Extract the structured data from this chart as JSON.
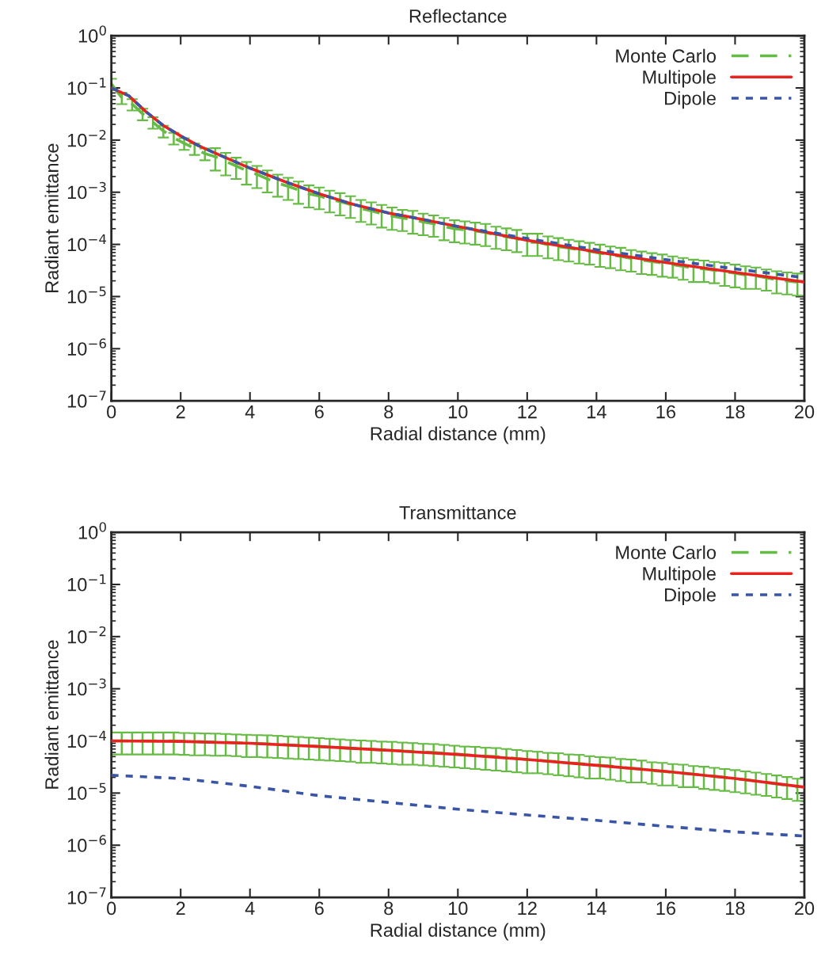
{
  "chart_data": [
    {
      "type": "line",
      "title": "Reflectance",
      "xlabel": "Radial distance (mm)",
      "ylabel": "Radiant emittance",
      "log": "y",
      "legend": "top right",
      "grid": false,
      "xlim": [
        0,
        20
      ],
      "xticks": [
        0,
        2,
        4,
        6,
        8,
        10,
        12,
        14,
        16,
        18,
        20
      ],
      "ylim": [
        1e-07,
        1
      ],
      "yticks": [
        {
          "value": 1e-07,
          "label": "10$^{−7}$"
        },
        {
          "value": 1e-06,
          "label": "10$^{−6}$"
        },
        {
          "value": 1e-05,
          "label": "10$^{−5}$"
        },
        {
          "value": 0.0001,
          "label": "10$^{−4}$"
        },
        {
          "value": 0.001,
          "label": "10$^{−3}$"
        },
        {
          "value": 0.01,
          "label": "10$^{−2}$"
        },
        {
          "value": 0.1,
          "label": "10$^{−1}$"
        },
        {
          "value": 1,
          "label": "10$^{0}$"
        }
      ],
      "series": [
        {
          "name": "Monte Carlo",
          "color": "#66bb44",
          "line_style": "dashed",
          "x": [
            0,
            0.3,
            0.6,
            0.9,
            1.2,
            1.5,
            1.8,
            2.1,
            2.4,
            2.7,
            3.0,
            3.3,
            3.6,
            3.9,
            4.2,
            4.5,
            4.8,
            5.1,
            5.4,
            5.7,
            6.0,
            6.3,
            6.6,
            6.9,
            7.2,
            7.5,
            7.8,
            8.1,
            8.4,
            8.7,
            9.0,
            9.3,
            9.6,
            9.9,
            10.2,
            10.5,
            10.8,
            11.1,
            11.4,
            11.7,
            12.0,
            12.3,
            12.6,
            12.9,
            13.2,
            13.5,
            13.8,
            14.1,
            14.4,
            14.7,
            15.0,
            15.3,
            15.6,
            15.9,
            16.2,
            16.5,
            16.8,
            17.1,
            17.4,
            17.7,
            18.0,
            18.3,
            18.6,
            18.9,
            19.2,
            19.5,
            19.8
          ],
          "values": [
            0.12,
            0.065,
            0.049,
            0.032,
            0.022,
            0.015,
            0.011,
            0.0087,
            0.0069,
            0.0055,
            0.0048,
            0.0039,
            0.0032,
            0.0026,
            0.0022,
            0.0018,
            0.0015,
            0.0013,
            0.0011,
            0.00093,
            0.00085,
            0.00074,
            0.00066,
            0.00058,
            0.00049,
            0.00044,
            0.00039,
            0.00035,
            0.00032,
            0.0003,
            0.00027,
            0.00025,
            0.00022,
            0.0002,
            0.00019,
            0.00018,
            0.00017,
            0.00015,
            0.00014,
            0.00013,
            0.00011,
            0.00011,
            9.8e-05,
            9.1e-05,
            8.5e-05,
            7.9e-05,
            7.4e-05,
            6.8e-05,
            6.3e-05,
            5.9e-05,
            5.4e-05,
            5e-05,
            4.7e-05,
            4.4e-05,
            4.1e-05,
            3.8e-05,
            3.5e-05,
            3.4e-05,
            3.2e-05,
            3e-05,
            2.8e-05,
            2.6e-05,
            2.5e-05,
            2.3e-05,
            2.1e-05,
            2e-05,
            1.9e-05
          ],
          "errors": [
            0.03,
            0.016,
            0.012,
            0.008,
            0.0055,
            0.0038,
            0.0028,
            0.0022,
            0.0017,
            0.0014,
            0.0022,
            0.0018,
            0.0014,
            0.0012,
            0.001,
            0.00081,
            0.00068,
            0.00059,
            0.0005,
            0.00042,
            0.00038,
            0.00033,
            0.0003,
            0.00026,
            0.00022,
            0.0002,
            0.00018,
            0.00016,
            0.00014,
            0.00014,
            0.00012,
            0.00011,
            0.0001,
            9e-05,
            8.6e-05,
            8.1e-05,
            7.7e-05,
            6.8e-05,
            6.3e-05,
            5.9e-05,
            5e-05,
            5e-05,
            4.4e-05,
            4.1e-05,
            3.8e-05,
            3.6e-05,
            3.3e-05,
            3.1e-05,
            2.8e-05,
            2.7e-05,
            2.4e-05,
            2.3e-05,
            2.1e-05,
            2e-05,
            1.8e-05,
            1.7e-05,
            1.6e-05,
            1.5e-05,
            1.4e-05,
            1.4e-05,
            1.3e-05,
            1.2e-05,
            1.1e-05,
            1e-05,
            9.5e-06,
            9e-06,
            8.6e-06
          ]
        },
        {
          "name": "Multipole",
          "color": "#e8231f",
          "line_style": "solid",
          "x": [
            0,
            0.5,
            1,
            1.5,
            2,
            2.5,
            3,
            4,
            5,
            6,
            7,
            8,
            9,
            10,
            12,
            14,
            16,
            18,
            20
          ],
          "values": [
            0.1,
            0.071,
            0.035,
            0.019,
            0.012,
            0.0079,
            0.0056,
            0.0029,
            0.0016,
            0.00093,
            0.00058,
            0.0004,
            0.0003,
            0.00022,
            0.00012,
            7.2e-05,
            4.5e-05,
            2.9e-05,
            1.9e-05
          ]
        },
        {
          "name": "Dipole",
          "color": "#3a55a5",
          "line_style": "dotted",
          "x": [
            0,
            0.5,
            1,
            1.5,
            2,
            2.5,
            3,
            4,
            5,
            6,
            7,
            8,
            9,
            10,
            12,
            14,
            16,
            18,
            20
          ],
          "values": [
            0.1,
            0.071,
            0.035,
            0.019,
            0.012,
            0.0079,
            0.0056,
            0.0029,
            0.0016,
            0.00093,
            0.00058,
            0.0004,
            0.0003,
            0.00022,
            0.00013,
            7.9e-05,
            5.1e-05,
            3.4e-05,
            2.3e-05
          ]
        }
      ]
    },
    {
      "type": "line",
      "title": "Transmittance",
      "xlabel": "Radial distance (mm)",
      "ylabel": "Radiant emittance",
      "log": "y",
      "legend": "top right",
      "grid": false,
      "xlim": [
        0,
        20
      ],
      "xticks": [
        0,
        2,
        4,
        6,
        8,
        10,
        12,
        14,
        16,
        18,
        20
      ],
      "ylim": [
        1e-07,
        1
      ],
      "yticks": [
        {
          "value": 1e-07,
          "label": "10$^{−7}$"
        },
        {
          "value": 1e-06,
          "label": "10$^{−6}$"
        },
        {
          "value": 1e-05,
          "label": "10$^{−5}$"
        },
        {
          "value": 0.0001,
          "label": "10$^{−4}$"
        },
        {
          "value": 0.001,
          "label": "10$^{−3}$"
        },
        {
          "value": 0.01,
          "label": "10$^{−2}$"
        },
        {
          "value": 0.1,
          "label": "10$^{−1}$"
        },
        {
          "value": 1,
          "label": "10$^{0}$"
        }
      ],
      "series": [
        {
          "name": "Monte Carlo",
          "color": "#66bb44",
          "line_style": "dashed",
          "x": [
            0,
            0.3,
            0.6,
            0.9,
            1.2,
            1.5,
            1.8,
            2.1,
            2.4,
            2.7,
            3.0,
            3.3,
            3.6,
            3.9,
            4.2,
            4.5,
            4.8,
            5.1,
            5.4,
            5.7,
            6.0,
            6.3,
            6.6,
            6.9,
            7.2,
            7.5,
            7.8,
            8.1,
            8.4,
            8.7,
            9.0,
            9.3,
            9.6,
            9.9,
            10.2,
            10.5,
            10.8,
            11.1,
            11.4,
            11.7,
            12.0,
            12.3,
            12.6,
            12.9,
            13.2,
            13.5,
            13.8,
            14.1,
            14.4,
            14.7,
            15.0,
            15.3,
            15.6,
            15.9,
            16.2,
            16.5,
            16.8,
            17.1,
            17.4,
            17.7,
            18.0,
            18.3,
            18.6,
            18.9,
            19.2,
            19.5,
            19.8
          ],
          "values": [
            0.0001,
            0.0001,
            0.0001,
            0.0001,
            0.0001,
            0.0001,
            0.0001,
            9.8e-05,
            9.7e-05,
            9.6e-05,
            9.5e-05,
            9.4e-05,
            9.2e-05,
            9e-05,
            8.9e-05,
            8.8e-05,
            8.6e-05,
            8.4e-05,
            8.2e-05,
            8e-05,
            7.8e-05,
            7.6e-05,
            7.4e-05,
            7.2e-05,
            7e-05,
            6.9e-05,
            6.7e-05,
            6.6e-05,
            6.4e-05,
            6.3e-05,
            6.1e-05,
            6e-05,
            5.8e-05,
            5.6e-05,
            5.4e-05,
            5.3e-05,
            5.1e-05,
            5e-05,
            4.8e-05,
            4.6e-05,
            4.4e-05,
            4.3e-05,
            4.1e-05,
            4e-05,
            3.8e-05,
            3.7e-05,
            3.5e-05,
            3.4e-05,
            3.3e-05,
            3.1e-05,
            3e-05,
            2.9e-05,
            2.7e-05,
            2.6e-05,
            2.5e-05,
            2.4e-05,
            2.3e-05,
            2.2e-05,
            2.1e-05,
            2e-05,
            1.9e-05,
            1.8e-05,
            1.7e-05,
            1.6e-05,
            1.5e-05,
            1.4e-05,
            1.3e-05
          ],
          "errors": [
            4.5e-05,
            4.5e-05,
            4.5e-05,
            4.5e-05,
            4.5e-05,
            4.5e-05,
            4.5e-05,
            4.4e-05,
            4.4e-05,
            4.3e-05,
            4.3e-05,
            4.2e-05,
            4.1e-05,
            4.1e-05,
            4e-05,
            4e-05,
            3.9e-05,
            3.8e-05,
            3.7e-05,
            3.6e-05,
            3.5e-05,
            3.4e-05,
            3.3e-05,
            3.2e-05,
            3.2e-05,
            3.1e-05,
            3e-05,
            3e-05,
            2.9e-05,
            2.8e-05,
            2.7e-05,
            2.7e-05,
            2.6e-05,
            2.5e-05,
            2.4e-05,
            2.4e-05,
            2.3e-05,
            2.3e-05,
            2.2e-05,
            2.1e-05,
            2e-05,
            1.9e-05,
            1.8e-05,
            1.8e-05,
            1.7e-05,
            1.7e-05,
            1.6e-05,
            1.5e-05,
            1.5e-05,
            1.4e-05,
            1.4e-05,
            1.3e-05,
            1.2e-05,
            1.2e-05,
            1.1e-05,
            1.1e-05,
            1e-05,
            1e-05,
            9.5e-06,
            9e-06,
            8.6e-06,
            8.1e-06,
            7.7e-06,
            7.2e-06,
            6.8e-06,
            6.3e-06,
            5.9e-06
          ]
        },
        {
          "name": "Multipole",
          "color": "#e8231f",
          "line_style": "solid",
          "x": [
            0,
            2,
            4,
            6,
            8,
            10,
            12,
            14,
            16,
            18,
            20
          ],
          "values": [
            0.0001,
            9.8e-05,
            9e-05,
            7.8e-05,
            6.6e-05,
            5.5e-05,
            4.4e-05,
            3.4e-05,
            2.6e-05,
            1.9e-05,
            1.3e-05
          ]
        },
        {
          "name": "Dipole",
          "color": "#3a55a5",
          "line_style": "dotted",
          "x": [
            0,
            2,
            4,
            6,
            8,
            10,
            12,
            14,
            16,
            18,
            20
          ],
          "values": [
            2.2e-05,
            1.9e-05,
            1.35e-05,
            8.9e-06,
            6.6e-06,
            4.9e-06,
            3.8e-06,
            3e-06,
            2.3e-06,
            1.8e-06,
            1.5e-06
          ]
        }
      ]
    }
  ]
}
